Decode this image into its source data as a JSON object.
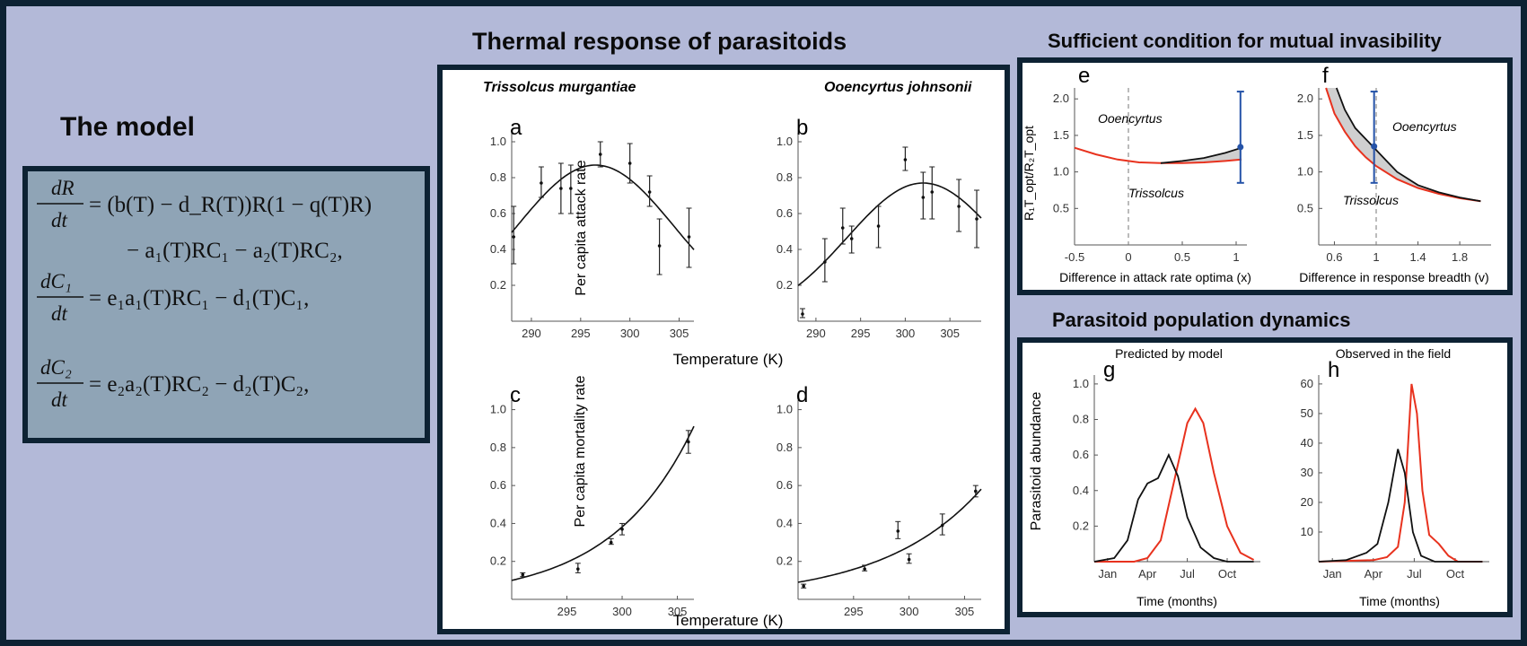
{
  "headings": {
    "model": "The model",
    "thermal": "Thermal response of parasitoids",
    "invasibility": "Sufficient condition for mutual invasibility",
    "dynamics": "Parasitoid population dynamics"
  },
  "equations": {
    "eq1_lhs_num": "dR",
    "eq1_lhs_den": "dt",
    "eq1_line1": "= (b(T) − d_R(T))R(1 − q(T)R)",
    "eq1_line2": "− a₁(T)RC₁ − a₂(T)RC₂,",
    "eq2_lhs_num": "dC₁",
    "eq2_lhs_den": "dt",
    "eq2_rhs": "= e₁a₁(T)RC₁ − d₁(T)C₁,",
    "eq3_lhs_num": "dC₂",
    "eq3_lhs_den": "dt",
    "eq3_rhs": "= e₂a₂(T)RC₂ − d₂(T)C₂,"
  },
  "thermal_panel": {
    "species_left": "Trissolcus murgantiae",
    "species_right": "Ooencyrtus johnsonii",
    "ylabel_top": "Per capita attack rate",
    "ylabel_bottom": "Per capita mortality rate",
    "xlabel_top": "Temperature (K)",
    "xlabel_bottom": "Temperature (K)"
  },
  "invasibility_panel": {
    "ylabel": "R₁T_opt/R₂T_opt",
    "xlabel_e": "Difference in attack rate optima (x)",
    "xlabel_f": "Difference in response breadth (v)",
    "e_upper_text": "Ooencyrtus",
    "e_lower_text": "Trissolcus",
    "f_upper_text": "Ooencyrtus",
    "f_lower_text": "Trissolcus"
  },
  "dynamics_panel": {
    "title_g": "Predicted by model",
    "title_h": "Observed in the field",
    "ylabel": "Parasitoid abundance",
    "xlabel_g": "Time (months)",
    "xlabel_h": "Time (months)"
  },
  "colors": {
    "background": "#b3b9d8",
    "frame": "#0d2233",
    "model_fill": "#8fa4b6",
    "black_curve": "#111111",
    "red_curve": "#e8321e",
    "blue_bar": "#2553a8",
    "shade": "#cfcfcf"
  },
  "chart_data": [
    {
      "id": "a",
      "type": "scatter",
      "label": "a",
      "xlim": [
        288,
        306.5
      ],
      "ylim": [
        0,
        1.05
      ],
      "xticks": [
        290,
        295,
        300,
        305
      ],
      "yticks": [
        0.2,
        0.4,
        0.6,
        0.8,
        1.0
      ],
      "points": [
        {
          "x": 288.2,
          "y": 0.47,
          "lo": 0.32,
          "hi": 0.64
        },
        {
          "x": 291.0,
          "y": 0.77,
          "lo": 0.69,
          "hi": 0.86
        },
        {
          "x": 293.0,
          "y": 0.74,
          "lo": 0.6,
          "hi": 0.88
        },
        {
          "x": 294.0,
          "y": 0.74,
          "lo": 0.6,
          "hi": 0.87
        },
        {
          "x": 297.0,
          "y": 0.93,
          "lo": 0.86,
          "hi": 1.0
        },
        {
          "x": 300.0,
          "y": 0.88,
          "lo": 0.77,
          "hi": 0.99
        },
        {
          "x": 302.0,
          "y": 0.72,
          "lo": 0.64,
          "hi": 0.81
        },
        {
          "x": 303.0,
          "y": 0.42,
          "lo": 0.26,
          "hi": 0.57
        },
        {
          "x": 306.0,
          "y": 0.47,
          "lo": 0.3,
          "hi": 0.63
        }
      ],
      "curve": {
        "kind": "gauss",
        "a": 0.87,
        "mu": 296.5,
        "sigma": 8.0
      }
    },
    {
      "id": "b",
      "type": "scatter",
      "label": "b",
      "xlim": [
        288,
        308.5
      ],
      "ylim": [
        0,
        1.05
      ],
      "xticks": [
        290,
        295,
        300,
        305
      ],
      "yticks": [
        0.2,
        0.4,
        0.6,
        0.8,
        1.0
      ],
      "points": [
        {
          "x": 288.5,
          "y": 0.04,
          "lo": 0.02,
          "hi": 0.07
        },
        {
          "x": 291.0,
          "y": 0.33,
          "lo": 0.22,
          "hi": 0.46
        },
        {
          "x": 293.0,
          "y": 0.52,
          "lo": 0.43,
          "hi": 0.63
        },
        {
          "x": 294.0,
          "y": 0.46,
          "lo": 0.38,
          "hi": 0.53
        },
        {
          "x": 297.0,
          "y": 0.53,
          "lo": 0.41,
          "hi": 0.64
        },
        {
          "x": 300.0,
          "y": 0.9,
          "lo": 0.84,
          "hi": 0.97
        },
        {
          "x": 302.0,
          "y": 0.69,
          "lo": 0.57,
          "hi": 0.83
        },
        {
          "x": 303.0,
          "y": 0.72,
          "lo": 0.57,
          "hi": 0.86
        },
        {
          "x": 306.0,
          "y": 0.64,
          "lo": 0.5,
          "hi": 0.79
        },
        {
          "x": 308.0,
          "y": 0.57,
          "lo": 0.41,
          "hi": 0.73
        }
      ],
      "curve": {
        "kind": "gauss",
        "a": 0.77,
        "mu": 302.0,
        "sigma": 8.5
      }
    },
    {
      "id": "c",
      "type": "scatter",
      "label": "c",
      "xlim": [
        290,
        306.5
      ],
      "ylim": [
        0,
        1.05
      ],
      "xticks": [
        295,
        300,
        305
      ],
      "yticks": [
        0.2,
        0.4,
        0.6,
        0.8,
        1.0
      ],
      "points": [
        {
          "x": 291.0,
          "y": 0.13,
          "lo": 0.12,
          "hi": 0.14
        },
        {
          "x": 296.0,
          "y": 0.16,
          "lo": 0.14,
          "hi": 0.19
        },
        {
          "x": 299.0,
          "y": 0.3,
          "lo": 0.29,
          "hi": 0.32
        },
        {
          "x": 300.0,
          "y": 0.37,
          "lo": 0.34,
          "hi": 0.4
        },
        {
          "x": 306.0,
          "y": 0.83,
          "lo": 0.77,
          "hi": 0.89
        }
      ],
      "curve": {
        "kind": "exp",
        "a": 0.1,
        "x0": 290,
        "k": 0.134
      }
    },
    {
      "id": "d",
      "type": "scatter",
      "label": "d",
      "xlim": [
        290,
        306.5
      ],
      "ylim": [
        0,
        1.05
      ],
      "xticks": [
        295,
        300,
        305
      ],
      "yticks": [
        0.2,
        0.4,
        0.6,
        0.8,
        1.0
      ],
      "points": [
        {
          "x": 290.5,
          "y": 0.07,
          "lo": 0.06,
          "hi": 0.08
        },
        {
          "x": 296.0,
          "y": 0.16,
          "lo": 0.15,
          "hi": 0.18
        },
        {
          "x": 299.0,
          "y": 0.36,
          "lo": 0.32,
          "hi": 0.41
        },
        {
          "x": 300.0,
          "y": 0.21,
          "lo": 0.19,
          "hi": 0.24
        },
        {
          "x": 303.0,
          "y": 0.39,
          "lo": 0.34,
          "hi": 0.45
        },
        {
          "x": 306.0,
          "y": 0.57,
          "lo": 0.54,
          "hi": 0.6
        }
      ],
      "curve": {
        "kind": "exp",
        "a": 0.09,
        "x0": 290,
        "k": 0.113
      }
    },
    {
      "id": "e",
      "type": "line",
      "label": "e",
      "xlim": [
        -0.5,
        1.1
      ],
      "ylim": [
        0,
        2.15
      ],
      "xticks": [
        -0.5,
        0.0,
        0.5,
        1.0
      ],
      "yticks": [
        0.5,
        1.0,
        1.5,
        2.0
      ],
      "vline": 0.0,
      "red": [
        [
          -0.5,
          1.33
        ],
        [
          -0.3,
          1.24
        ],
        [
          -0.1,
          1.17
        ],
        [
          0.1,
          1.13
        ],
        [
          0.3,
          1.12
        ],
        [
          0.5,
          1.12
        ],
        [
          0.7,
          1.13
        ],
        [
          0.9,
          1.15
        ],
        [
          1.05,
          1.17
        ]
      ],
      "black": [
        [
          0.3,
          1.12
        ],
        [
          0.5,
          1.15
        ],
        [
          0.7,
          1.19
        ],
        [
          0.9,
          1.26
        ],
        [
          1.05,
          1.33
        ]
      ],
      "errorbar": {
        "x": 1.04,
        "y": 1.34,
        "lo": 0.85,
        "hi": 2.1
      }
    },
    {
      "id": "f",
      "type": "line",
      "label": "f",
      "xlim": [
        0.45,
        2.1
      ],
      "ylim": [
        0,
        2.15
      ],
      "xticks": [
        0.6,
        1.0,
        1.4,
        1.8
      ],
      "yticks": [
        0.5,
        1.0,
        1.5,
        2.0
      ],
      "vline": 1.0,
      "red": [
        [
          0.52,
          2.15
        ],
        [
          0.6,
          1.8
        ],
        [
          0.7,
          1.55
        ],
        [
          0.8,
          1.35
        ],
        [
          0.9,
          1.2
        ],
        [
          1.0,
          1.08
        ],
        [
          1.2,
          0.9
        ],
        [
          1.4,
          0.78
        ],
        [
          1.6,
          0.7
        ],
        [
          1.8,
          0.64
        ],
        [
          2.0,
          0.6
        ]
      ],
      "black": [
        [
          0.62,
          2.15
        ],
        [
          0.7,
          1.85
        ],
        [
          0.8,
          1.6
        ],
        [
          0.9,
          1.45
        ],
        [
          0.98,
          1.33
        ],
        [
          1.1,
          1.15
        ],
        [
          1.2,
          1.0
        ],
        [
          1.4,
          0.82
        ],
        [
          1.6,
          0.72
        ],
        [
          1.8,
          0.65
        ],
        [
          2.0,
          0.6
        ]
      ],
      "errorbar": {
        "x": 0.98,
        "y": 1.35,
        "lo": 0.85,
        "hi": 2.1
      }
    },
    {
      "id": "g",
      "type": "line",
      "label": "g",
      "xlim": [
        0,
        12.5
      ],
      "ylim": [
        0,
        1.05
      ],
      "xticks": [
        "Jan",
        "Apr",
        "Jul",
        "Oct"
      ],
      "xtick_pos": [
        1,
        4,
        7,
        10
      ],
      "yticks": [
        0.2,
        0.4,
        0.6,
        0.8,
        1.0
      ],
      "black": [
        [
          0,
          0.0
        ],
        [
          1.5,
          0.02
        ],
        [
          2.5,
          0.12
        ],
        [
          3.3,
          0.35
        ],
        [
          4,
          0.44
        ],
        [
          4.8,
          0.47
        ],
        [
          5.6,
          0.6
        ],
        [
          6.3,
          0.48
        ],
        [
          7,
          0.25
        ],
        [
          8,
          0.08
        ],
        [
          9,
          0.02
        ],
        [
          10,
          0.0
        ],
        [
          12,
          0.0
        ]
      ],
      "red": [
        [
          0,
          0.0
        ],
        [
          3,
          0.0
        ],
        [
          4,
          0.02
        ],
        [
          5,
          0.12
        ],
        [
          6,
          0.45
        ],
        [
          7,
          0.78
        ],
        [
          7.6,
          0.86
        ],
        [
          8.2,
          0.78
        ],
        [
          9,
          0.5
        ],
        [
          10,
          0.2
        ],
        [
          11,
          0.05
        ],
        [
          12,
          0.01
        ]
      ]
    },
    {
      "id": "h",
      "type": "line",
      "label": "h",
      "xlim": [
        0,
        12.5
      ],
      "ylim": [
        0,
        63
      ],
      "xticks": [
        "Jan",
        "Apr",
        "Jul",
        "Oct"
      ],
      "xtick_pos": [
        1,
        4,
        7,
        10
      ],
      "yticks": [
        10,
        20,
        30,
        40,
        50,
        60
      ],
      "black": [
        [
          0,
          0
        ],
        [
          2,
          0.5
        ],
        [
          3.5,
          3
        ],
        [
          4.3,
          6
        ],
        [
          5.1,
          20
        ],
        [
          5.8,
          38
        ],
        [
          6.3,
          30
        ],
        [
          6.9,
          10
        ],
        [
          7.5,
          2
        ],
        [
          8.5,
          0
        ],
        [
          10,
          0
        ],
        [
          12,
          0
        ]
      ],
      "red": [
        [
          0,
          0
        ],
        [
          4,
          0.5
        ],
        [
          5,
          1.5
        ],
        [
          5.8,
          5
        ],
        [
          6.3,
          20
        ],
        [
          6.8,
          60
        ],
        [
          7.2,
          50
        ],
        [
          7.6,
          24
        ],
        [
          8.1,
          9
        ],
        [
          8.8,
          6
        ],
        [
          9.5,
          2
        ],
        [
          10.2,
          0
        ],
        [
          12,
          0
        ]
      ]
    }
  ]
}
